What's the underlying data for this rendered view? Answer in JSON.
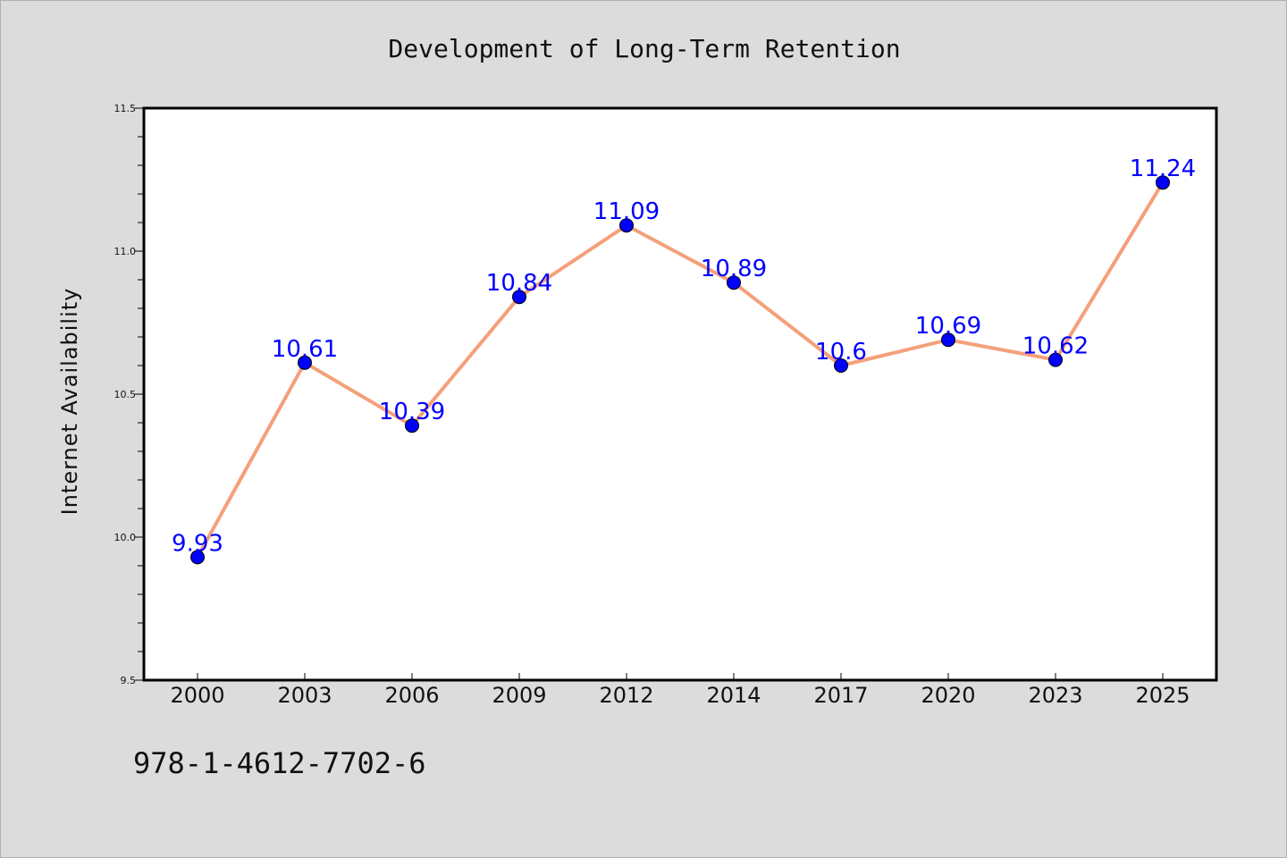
{
  "chart_data": {
    "type": "line",
    "title": "Development of Long-Term Retention",
    "xlabel": "",
    "ylabel": "Internet Availability",
    "categories": [
      "2000",
      "2003",
      "2006",
      "2009",
      "2012",
      "2014",
      "2017",
      "2020",
      "2023",
      "2025"
    ],
    "series": [
      {
        "values": [
          9.93,
          10.61,
          10.39,
          10.84,
          11.09,
          10.89,
          10.6,
          10.69,
          10.62,
          11.24
        ],
        "data_labels": [
          "9.93",
          "10.61",
          "10.39",
          "10.84",
          "11.09",
          "10.89",
          "10.6",
          "10.69",
          "10.62",
          "11.24"
        ],
        "line_color": "#f4a07a",
        "marker_color": "#0000ff"
      }
    ],
    "ylim": [
      9.5,
      11.5
    ],
    "yticks": [
      9.5,
      10.0,
      10.5,
      11.0,
      11.5
    ],
    "ytick_labels": [
      "9.5",
      "10.0",
      "10.5",
      "11.0",
      "11.5"
    ],
    "grid": false,
    "legend": "none"
  },
  "footer": {
    "text": "978-1-4612-7702-6"
  },
  "colors": {
    "background": "#dcdcdc",
    "plot_background": "#ffffff",
    "label_color": "#0000ff"
  }
}
